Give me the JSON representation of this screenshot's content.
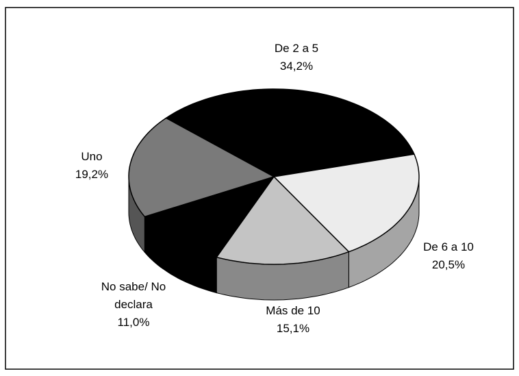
{
  "chart_data": {
    "type": "pie",
    "categories": [
      "De 2 a 5",
      "De 6 a 10",
      "Más de 10",
      "No sabe/ No declara",
      "Uno"
    ],
    "values": [
      34.2,
      20.5,
      15.1,
      11.0,
      19.2
    ],
    "value_labels": [
      "34,2%",
      "20,5%",
      "15,1%",
      "11,0%",
      "19,2%"
    ],
    "colors": [
      "#000000",
      "#ececec",
      "#c4c4c4",
      "#000000",
      "#7a7a7a"
    ]
  }
}
